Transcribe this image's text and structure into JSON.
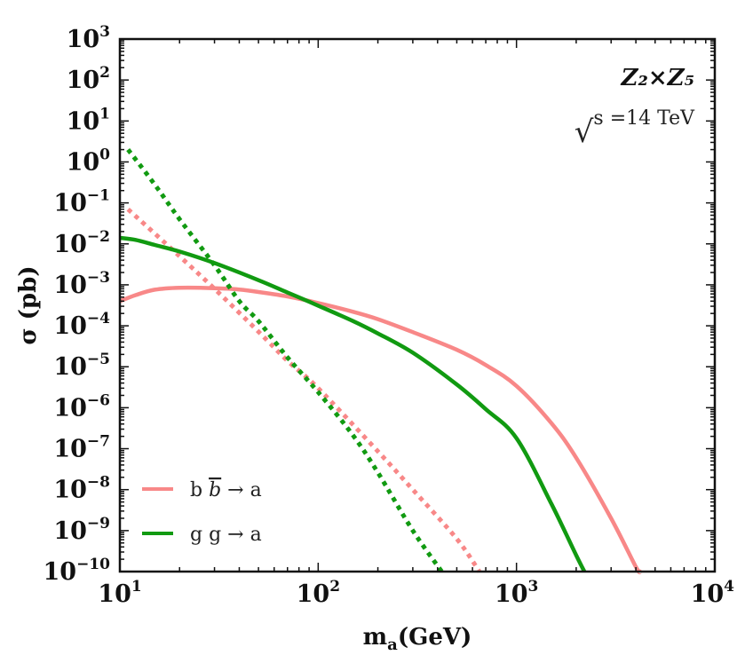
{
  "chart_data": {
    "type": "line",
    "xscale": "log",
    "yscale": "log",
    "xlabel": "m",
    "xlabel_sub": "a",
    "xlabel_unit": "(GeV)",
    "ylabel": "σ (pb)",
    "xlim": [
      10,
      10000
    ],
    "ylim": [
      1e-10,
      1000
    ],
    "x_ticks": [
      {
        "base": "10",
        "exp": "1",
        "value": 10
      },
      {
        "base": "10",
        "exp": "2",
        "value": 100
      },
      {
        "base": "10",
        "exp": "3",
        "value": 1000
      },
      {
        "base": "10",
        "exp": "4",
        "value": 10000
      }
    ],
    "y_ticks": [
      {
        "base": "10",
        "exp": "3",
        "value": 1000.0
      },
      {
        "base": "10",
        "exp": "2",
        "value": 100.0
      },
      {
        "base": "10",
        "exp": "1",
        "value": 10.0
      },
      {
        "base": "10",
        "exp": "0",
        "value": 1.0
      },
      {
        "base": "10",
        "exp": "−1",
        "value": 0.1
      },
      {
        "base": "10",
        "exp": "−2",
        "value": 0.01
      },
      {
        "base": "10",
        "exp": "−3",
        "value": 0.001
      },
      {
        "base": "10",
        "exp": "−4",
        "value": 0.0001
      },
      {
        "base": "10",
        "exp": "−5",
        "value": 1e-05
      },
      {
        "base": "10",
        "exp": "−6",
        "value": 1e-06
      },
      {
        "base": "10",
        "exp": "−7",
        "value": 1e-07
      },
      {
        "base": "10",
        "exp": "−8",
        "value": 1e-08
      },
      {
        "base": "10",
        "exp": "−9",
        "value": 1e-09
      },
      {
        "base": "10",
        "exp": "−10",
        "value": 1e-10
      }
    ],
    "annotations": {
      "model": "Z₂×Z₅",
      "energy_prefix": "√",
      "energy": "s =14 TeV"
    },
    "legend": {
      "placement": "bottom-left",
      "entries": [
        {
          "label": "b b̅ → a",
          "label_parts": [
            "b ",
            "b",
            " → a"
          ],
          "color": "#f88888"
        },
        {
          "label": "g g → a",
          "label_parts": [
            "g g → a"
          ],
          "color": "#119a11"
        }
      ]
    },
    "series": [
      {
        "name": "b b̅ → a (solid)",
        "color": "#f88888",
        "style": "solid",
        "x": [
          10,
          12,
          15,
          20,
          30,
          40,
          50,
          70,
          100,
          150,
          200,
          300,
          500,
          700,
          1000,
          1500,
          2000,
          3000,
          4000,
          4200
        ],
        "y": [
          0.0004,
          0.00056,
          0.00076,
          0.00085,
          0.00083,
          0.00077,
          0.00067,
          0.00052,
          0.00036,
          0.00022,
          0.000145,
          7e-05,
          2.6e-05,
          1.1e-05,
          3.4e-06,
          4.2e-07,
          6e-08,
          2e-09,
          1.3e-10,
          1e-10
        ]
      },
      {
        "name": "b b̅ → a (dotted)",
        "color": "#f88888",
        "style": "dotted",
        "x": [
          11,
          20,
          30,
          50,
          70,
          100,
          200,
          300,
          500,
          650
        ],
        "y": [
          0.07,
          0.005,
          0.0008,
          7.2e-05,
          1.4e-05,
          3e-06,
          8.6e-08,
          1e-08,
          6.3e-10,
          1e-10
        ]
      },
      {
        "name": "g g → a (solid)",
        "color": "#119a11",
        "style": "solid",
        "x": [
          10,
          12,
          15,
          20,
          30,
          50,
          70,
          100,
          150,
          200,
          300,
          500,
          700,
          1000,
          1500,
          2000,
          2200
        ],
        "y": [
          0.014,
          0.0125,
          0.0094,
          0.0065,
          0.0034,
          0.0013,
          0.00065,
          0.00031,
          0.00013,
          6.5e-05,
          2.2e-05,
          3.7e-06,
          9.2e-07,
          1.8e-07,
          4.5e-09,
          2.5e-10,
          1e-10
        ]
      },
      {
        "name": "g g → a (dotted)",
        "color": "#119a11",
        "style": "dotted",
        "x": [
          11,
          15,
          20,
          30,
          40,
          50,
          70,
          100,
          150,
          200,
          300,
          420
        ],
        "y": [
          2,
          0.28,
          0.04,
          0.003,
          0.0004,
          0.00013,
          1.7e-05,
          2.4e-06,
          2.1e-07,
          2.6e-08,
          1e-09,
          1e-10
        ]
      }
    ]
  }
}
